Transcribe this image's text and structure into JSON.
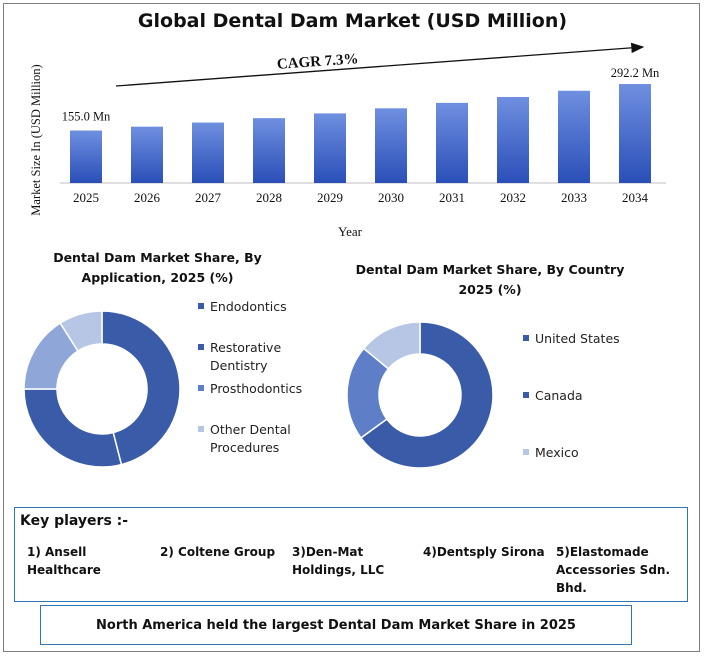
{
  "title": "Global Dental Dam Market (USD Million)",
  "colors": {
    "bar_top": "#6f8fe0",
    "bar_bottom": "#2a4fb8",
    "donut_dark": "#3a5ba8",
    "donut_mid": "#5e7fc8",
    "donut_light": "#8fa6d8",
    "donut_pale": "#b8c6e6",
    "box_border": "#2e75b6"
  },
  "chart_data": [
    {
      "type": "bar",
      "title": "Global Dental Dam Market (USD Million)",
      "categories": [
        "2025",
        "2026",
        "2027",
        "2028",
        "2029",
        "2030",
        "2031",
        "2032",
        "2033",
        "2034"
      ],
      "values": [
        155.0,
        166.3,
        178.5,
        191.5,
        205.5,
        220.5,
        236.6,
        253.9,
        272.4,
        292.2
      ],
      "xlabel": "Year",
      "ylabel": "Market Size In (USD Million)",
      "ylim": [
        0,
        310
      ],
      "grid": false,
      "annotations": {
        "first_label": "155.0 Mn",
        "last_label": "292.2 Mn",
        "cagr": "CAGR 7.3%"
      }
    },
    {
      "type": "pie",
      "title": "Dental Dam Market Share, By Application, 2025 (%)",
      "categories": [
        "Endodontics",
        "Restorative Dentistry",
        "Prosthodontics",
        "Other Dental Procedures"
      ],
      "values": [
        46,
        29,
        16,
        9
      ],
      "legend": "right"
    },
    {
      "type": "pie",
      "title": "Dental Dam Market Share, By Country 2025 (%)",
      "categories": [
        "United States",
        "Canada",
        "Mexico"
      ],
      "values": [
        65,
        21,
        14
      ],
      "legend": "right"
    }
  ],
  "donut1": {
    "title_line1": "Dental Dam Market Share, By",
    "title_line2": "Application, 2025 (%)",
    "legend": [
      "Endodontics",
      "Restorative\nDentistry",
      "Prosthodontics",
      "Other Dental\nProcedures"
    ]
  },
  "donut2": {
    "title_line1": "Dental Dam Market Share, By Country",
    "title_line2": "2025 (%)",
    "legend": [
      "United States",
      "Canada",
      "Mexico"
    ]
  },
  "key_players": {
    "heading": "Key players :-",
    "players": [
      "1) Ansell\nHealthcare",
      "2) Coltene Group",
      "3)Den-Mat\nHoldings, LLC",
      "4)Dentsply Sirona",
      "5)Elastomade\nAccessories Sdn.\nBhd."
    ]
  },
  "note": "North America held the largest Dental Dam Market Share in 2025"
}
